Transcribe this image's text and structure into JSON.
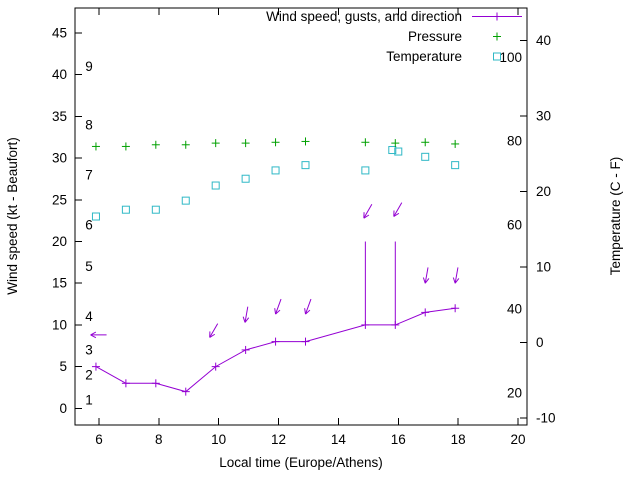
{
  "chart_data": {
    "type": "line",
    "x_axis": {
      "label": "Local time (Europe/Athens)",
      "range": [
        5.2,
        20.3
      ],
      "ticks": [
        6,
        8,
        10,
        12,
        14,
        16,
        18,
        20
      ]
    },
    "y_left": {
      "label": "Wind speed (kt - Beaufort)",
      "range": [
        -2,
        48
      ],
      "ticks": [
        0,
        5,
        10,
        15,
        20,
        25,
        30,
        35,
        40,
        45
      ],
      "beaufort_scale_labels": [
        {
          "beaufort": "1",
          "kt": 1
        },
        {
          "beaufort": "2",
          "kt": 4
        },
        {
          "beaufort": "3",
          "kt": 7
        },
        {
          "beaufort": "4",
          "kt": 11
        },
        {
          "beaufort": "5",
          "kt": 17
        },
        {
          "beaufort": "6",
          "kt": 22
        },
        {
          "beaufort": "7",
          "kt": 28
        },
        {
          "beaufort": "8",
          "kt": 34
        },
        {
          "beaufort": "9",
          "kt": 41
        }
      ]
    },
    "y_right": {
      "label": "Temperature (C - F)",
      "range_c": [
        -10.9,
        44.3
      ],
      "ticks_c": [
        -10,
        0,
        10,
        20,
        30,
        40
      ],
      "ticks_f": [
        20,
        40,
        60,
        80,
        100
      ]
    },
    "series": {
      "wind": {
        "name": "Wind speed, gusts, and direction",
        "color": "#9400d3",
        "marker": "plus",
        "x": [
          5.9,
          6.9,
          7.9,
          8.9,
          9.9,
          10.9,
          11.9,
          12.9,
          14.9,
          15.9,
          16.9,
          17.9
        ],
        "kt": [
          5,
          3,
          3,
          2,
          5,
          7,
          8,
          8,
          10,
          10,
          11.5,
          12
        ],
        "gusts": [
          {
            "x": 14.9,
            "from_kt": 10,
            "to_kt": 20
          },
          {
            "x": 15.9,
            "from_kt": 10,
            "to_kt": 20
          }
        ],
        "direction_arrows": [
          {
            "x": 5.72,
            "kt": 8.8,
            "angle_deg": 180
          },
          {
            "x": 9.7,
            "kt": 8.5,
            "angle_deg": 120
          },
          {
            "x": 10.88,
            "kt": 10.3,
            "angle_deg": 100
          },
          {
            "x": 11.9,
            "kt": 11.3,
            "angle_deg": 110
          },
          {
            "x": 12.9,
            "kt": 11.3,
            "angle_deg": 110
          },
          {
            "x": 14.85,
            "kt": 22.8,
            "angle_deg": 120
          },
          {
            "x": 15.85,
            "kt": 23.0,
            "angle_deg": 120
          },
          {
            "x": 16.9,
            "kt": 15.0,
            "angle_deg": 100
          },
          {
            "x": 17.9,
            "kt": 15.0,
            "angle_deg": 100
          }
        ]
      },
      "pressure": {
        "name": "Pressure",
        "color": "#00a000",
        "marker": "plus",
        "x": [
          5.9,
          6.9,
          7.9,
          8.9,
          9.9,
          10.9,
          11.9,
          12.9,
          14.9,
          15.9,
          16.9,
          17.9
        ],
        "y_left_axis_kt": [
          31.4,
          31.4,
          31.6,
          31.6,
          31.8,
          31.8,
          31.9,
          32.0,
          31.9,
          31.8,
          31.9,
          31.7
        ]
      },
      "temperature": {
        "name": "Temperature",
        "color": "#2fb8c6",
        "marker": "open-square",
        "x": [
          5.9,
          6.9,
          7.9,
          8.9,
          9.9,
          10.9,
          11.9,
          12.9,
          14.9,
          15.8,
          16.0,
          16.9,
          17.9
        ],
        "c": [
          16.7,
          17.6,
          17.6,
          18.8,
          20.8,
          21.7,
          22.8,
          23.5,
          22.8,
          25.5,
          25.3,
          24.6,
          23.5
        ]
      }
    },
    "legend": {
      "position": "top-right-inside",
      "items": [
        {
          "label": "Wind speed, gusts, and direction",
          "series": "wind"
        },
        {
          "label": "Pressure",
          "series": "pressure"
        },
        {
          "label": "Temperature",
          "series": "temperature"
        }
      ]
    }
  }
}
